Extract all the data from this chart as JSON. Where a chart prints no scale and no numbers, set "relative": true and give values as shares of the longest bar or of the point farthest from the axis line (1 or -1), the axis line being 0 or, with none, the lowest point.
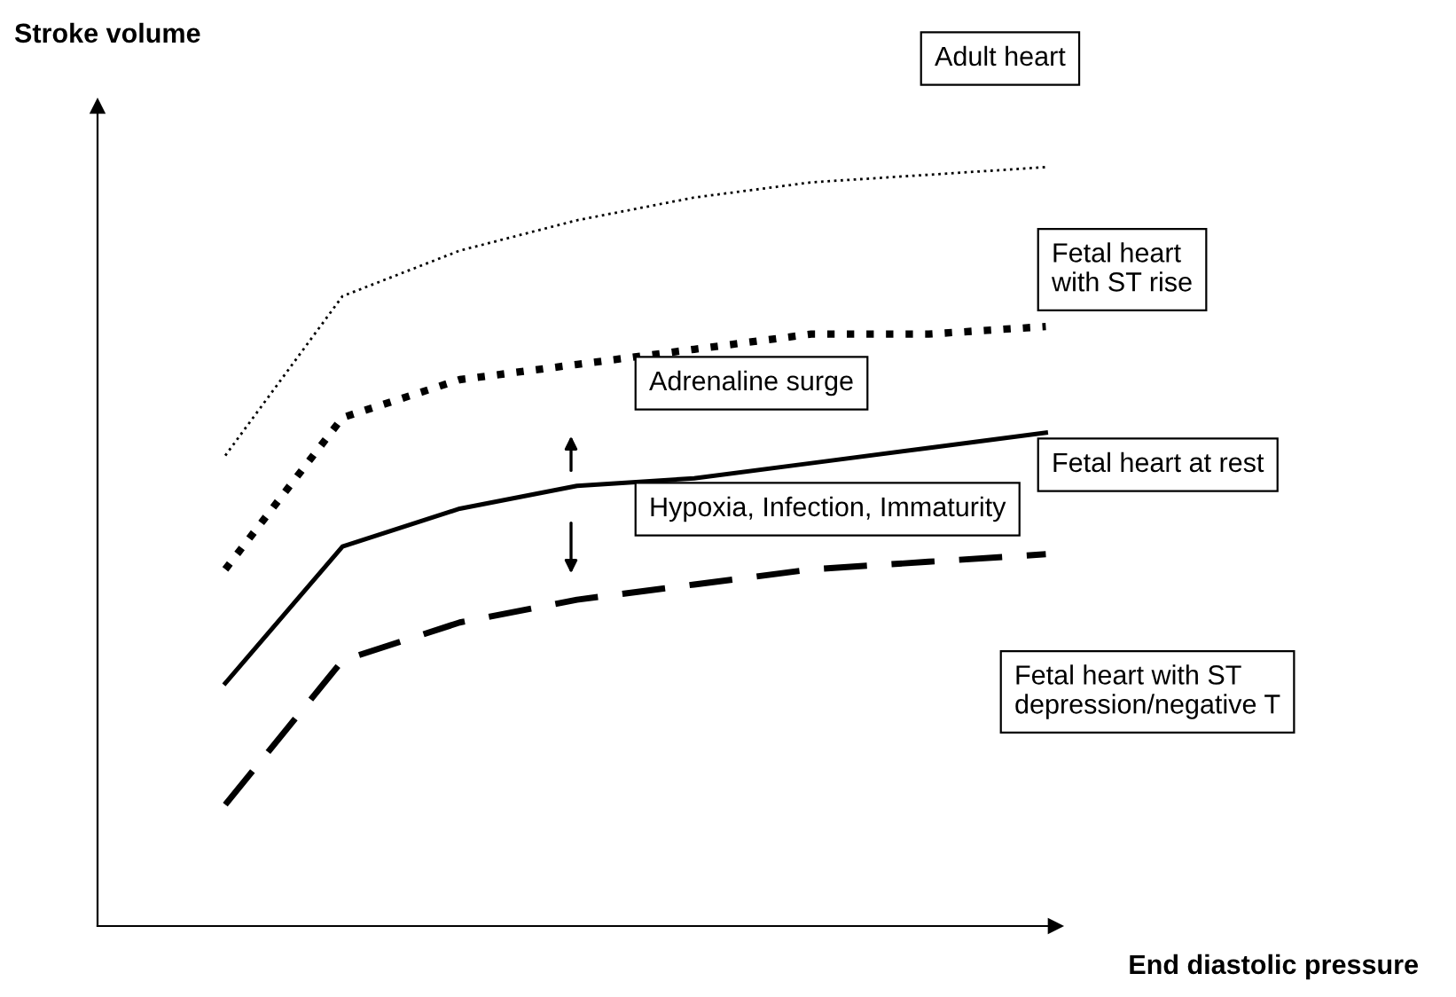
{
  "chart_data": {
    "type": "line",
    "relative": true,
    "xlabel": "End diastolic pressure",
    "ylabel": "Stroke volume",
    "categories": [
      null,
      null,
      null,
      null,
      null,
      null,
      null,
      null
    ],
    "series": [
      {
        "name": "Adult heart",
        "color": "#000000",
        "line_style": "dotted",
        "values": [
          0.62,
          0.83,
          0.89,
          0.93,
          0.96,
          0.98,
          0.99,
          1.0
        ]
      },
      {
        "name": "Fetal heart\nwith ST rise",
        "color": "#000000",
        "line_style": "dotted",
        "values": [
          0.47,
          0.67,
          0.72,
          0.74,
          0.76,
          0.78,
          0.78,
          0.79
        ]
      },
      {
        "name": "Fetal heart at rest",
        "color": "#000000",
        "line_style": "solid",
        "values": [
          0.32,
          0.5,
          0.55,
          0.58,
          0.59,
          0.61,
          0.63,
          0.65
        ]
      },
      {
        "name": "Fetal heart with ST\ndepression/negative T",
        "color": "#000000",
        "line_style": "dashed",
        "values": [
          0.16,
          0.35,
          0.4,
          0.43,
          0.45,
          0.47,
          0.48,
          0.49
        ]
      }
    ],
    "annotations": [
      "Adrenaline surge",
      "Hypoxia, Infection, Immaturity"
    ],
    "legend": false,
    "marker": "none",
    "tick_labels": false
  }
}
